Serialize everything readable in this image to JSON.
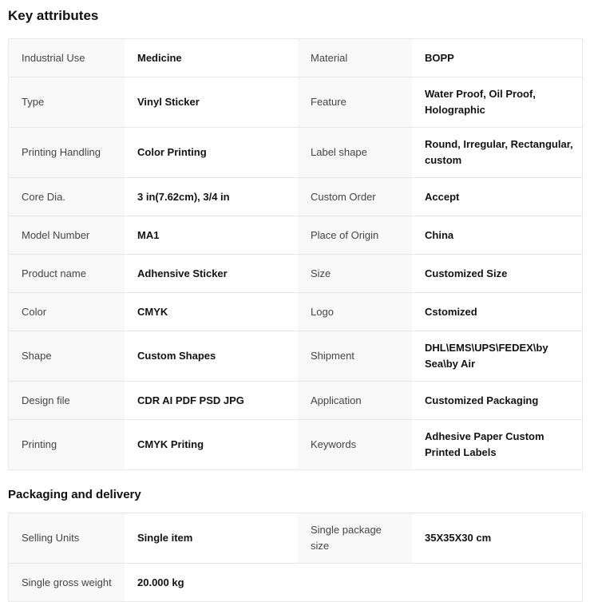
{
  "colors": {
    "label_bg": "#f8f8f8",
    "border": "#e7e7e7",
    "label_text": "#444444",
    "value_text": "#121212",
    "heading_text": "#111111",
    "page_bg": "#ffffff"
  },
  "sections": [
    {
      "title": "Key attributes",
      "rows": [
        [
          {
            "label": "Industrial Use",
            "value": "Medicine"
          },
          {
            "label": "Material",
            "value": "BOPP"
          }
        ],
        [
          {
            "label": "Type",
            "value": "Vinyl Sticker"
          },
          {
            "label": "Feature",
            "value": "Water Proof, Oil Proof, Holographic"
          }
        ],
        [
          {
            "label": "Printing Handling",
            "value": "Color Printing"
          },
          {
            "label": "Label shape",
            "value": "Round, Irregular, Rectangular, custom"
          }
        ],
        [
          {
            "label": "Core Dia.",
            "value": "3 in(7.62cm), 3/4 in"
          },
          {
            "label": "Custom Order",
            "value": "Accept"
          }
        ],
        [
          {
            "label": "Model Number",
            "value": "MA1"
          },
          {
            "label": "Place of Origin",
            "value": "China"
          }
        ],
        [
          {
            "label": "Product name",
            "value": "Adhensive Sticker"
          },
          {
            "label": "Size",
            "value": "Customized Size"
          }
        ],
        [
          {
            "label": "Color",
            "value": "CMYK"
          },
          {
            "label": "Logo",
            "value": "Cstomized"
          }
        ],
        [
          {
            "label": "Shape",
            "value": "Custom Shapes"
          },
          {
            "label": "Shipment",
            "value": "DHL\\EMS\\UPS\\FEDEX\\by Sea\\by Air"
          }
        ],
        [
          {
            "label": "Design file",
            "value": "CDR AI PDF PSD JPG"
          },
          {
            "label": "Application",
            "value": "Customized Packaging"
          }
        ],
        [
          {
            "label": "Printing",
            "value": "CMYK Priting"
          },
          {
            "label": "Keywords",
            "value": "Adhesive Paper Custom Printed Labels"
          }
        ]
      ]
    },
    {
      "title": "Packaging and delivery",
      "rows": [
        [
          {
            "label": "Selling Units",
            "value": "Single item"
          },
          {
            "label": "Single package size",
            "value": "35X35X30 cm"
          }
        ],
        [
          {
            "label": "Single gross weight",
            "value": "20.000 kg"
          },
          null
        ]
      ]
    }
  ]
}
